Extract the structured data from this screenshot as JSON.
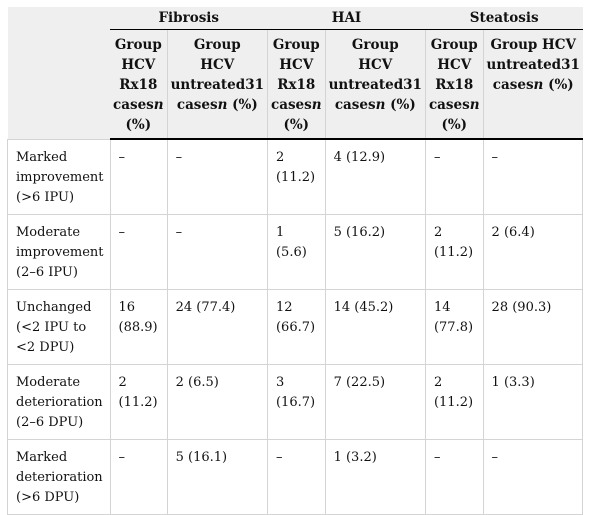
{
  "header": {
    "groups": [
      "Fibrosis",
      "HAI",
      "Steatosis"
    ],
    "subcols": [
      [
        "Group",
        "HCV",
        "Rx18",
        "cases",
        "n",
        "(%)"
      ],
      [
        "Group",
        "HCV",
        "untreated31",
        "cases",
        "n",
        "(%)"
      ],
      [
        "Group",
        "HCV",
        "Rx18",
        "cases",
        "n",
        "(%)"
      ],
      [
        "Group",
        "HCV",
        "untreated31",
        "cases",
        "n",
        "(%)"
      ],
      [
        "Group",
        "HCV",
        "Rx18",
        "cases",
        "n",
        "(%)"
      ],
      [
        "Group HCV",
        "untreated31",
        "cases",
        "n",
        "(%)"
      ]
    ]
  },
  "rows": [
    {
      "label": [
        "Marked",
        "improvement",
        "(>6 IPU)"
      ],
      "cells": [
        "–",
        "–",
        "2 (11.2)",
        "4 (12.9)",
        "–",
        "–"
      ]
    },
    {
      "label": [
        "Moderate",
        "improvement",
        "(2–6 IPU)"
      ],
      "cells": [
        "–",
        "–",
        "1 (5.6)",
        "5 (16.2)",
        "2 (11.2)",
        "2 (6.4)"
      ]
    },
    {
      "label": [
        "Unchanged",
        "(<2 IPU to",
        "<2 DPU)"
      ],
      "cells": [
        "16 (88.9)",
        "24 (77.4)",
        "12 (66.7)",
        "14 (45.2)",
        "14 (77.8)",
        "28 (90.3)"
      ]
    },
    {
      "label": [
        "Moderate",
        "deterioration",
        "(2–6 DPU)"
      ],
      "cells": [
        "2 (11.2)",
        "2 (6.5)",
        "3 (16.7)",
        "7 (22.5)",
        "2 (11.2)",
        "1 (3.3)"
      ]
    },
    {
      "label": [
        "Marked",
        "deterioration",
        "(>6 DPU)"
      ],
      "cells": [
        "–",
        "5 (16.1)",
        "–",
        "1 (3.2)",
        "–",
        "–"
      ]
    }
  ]
}
